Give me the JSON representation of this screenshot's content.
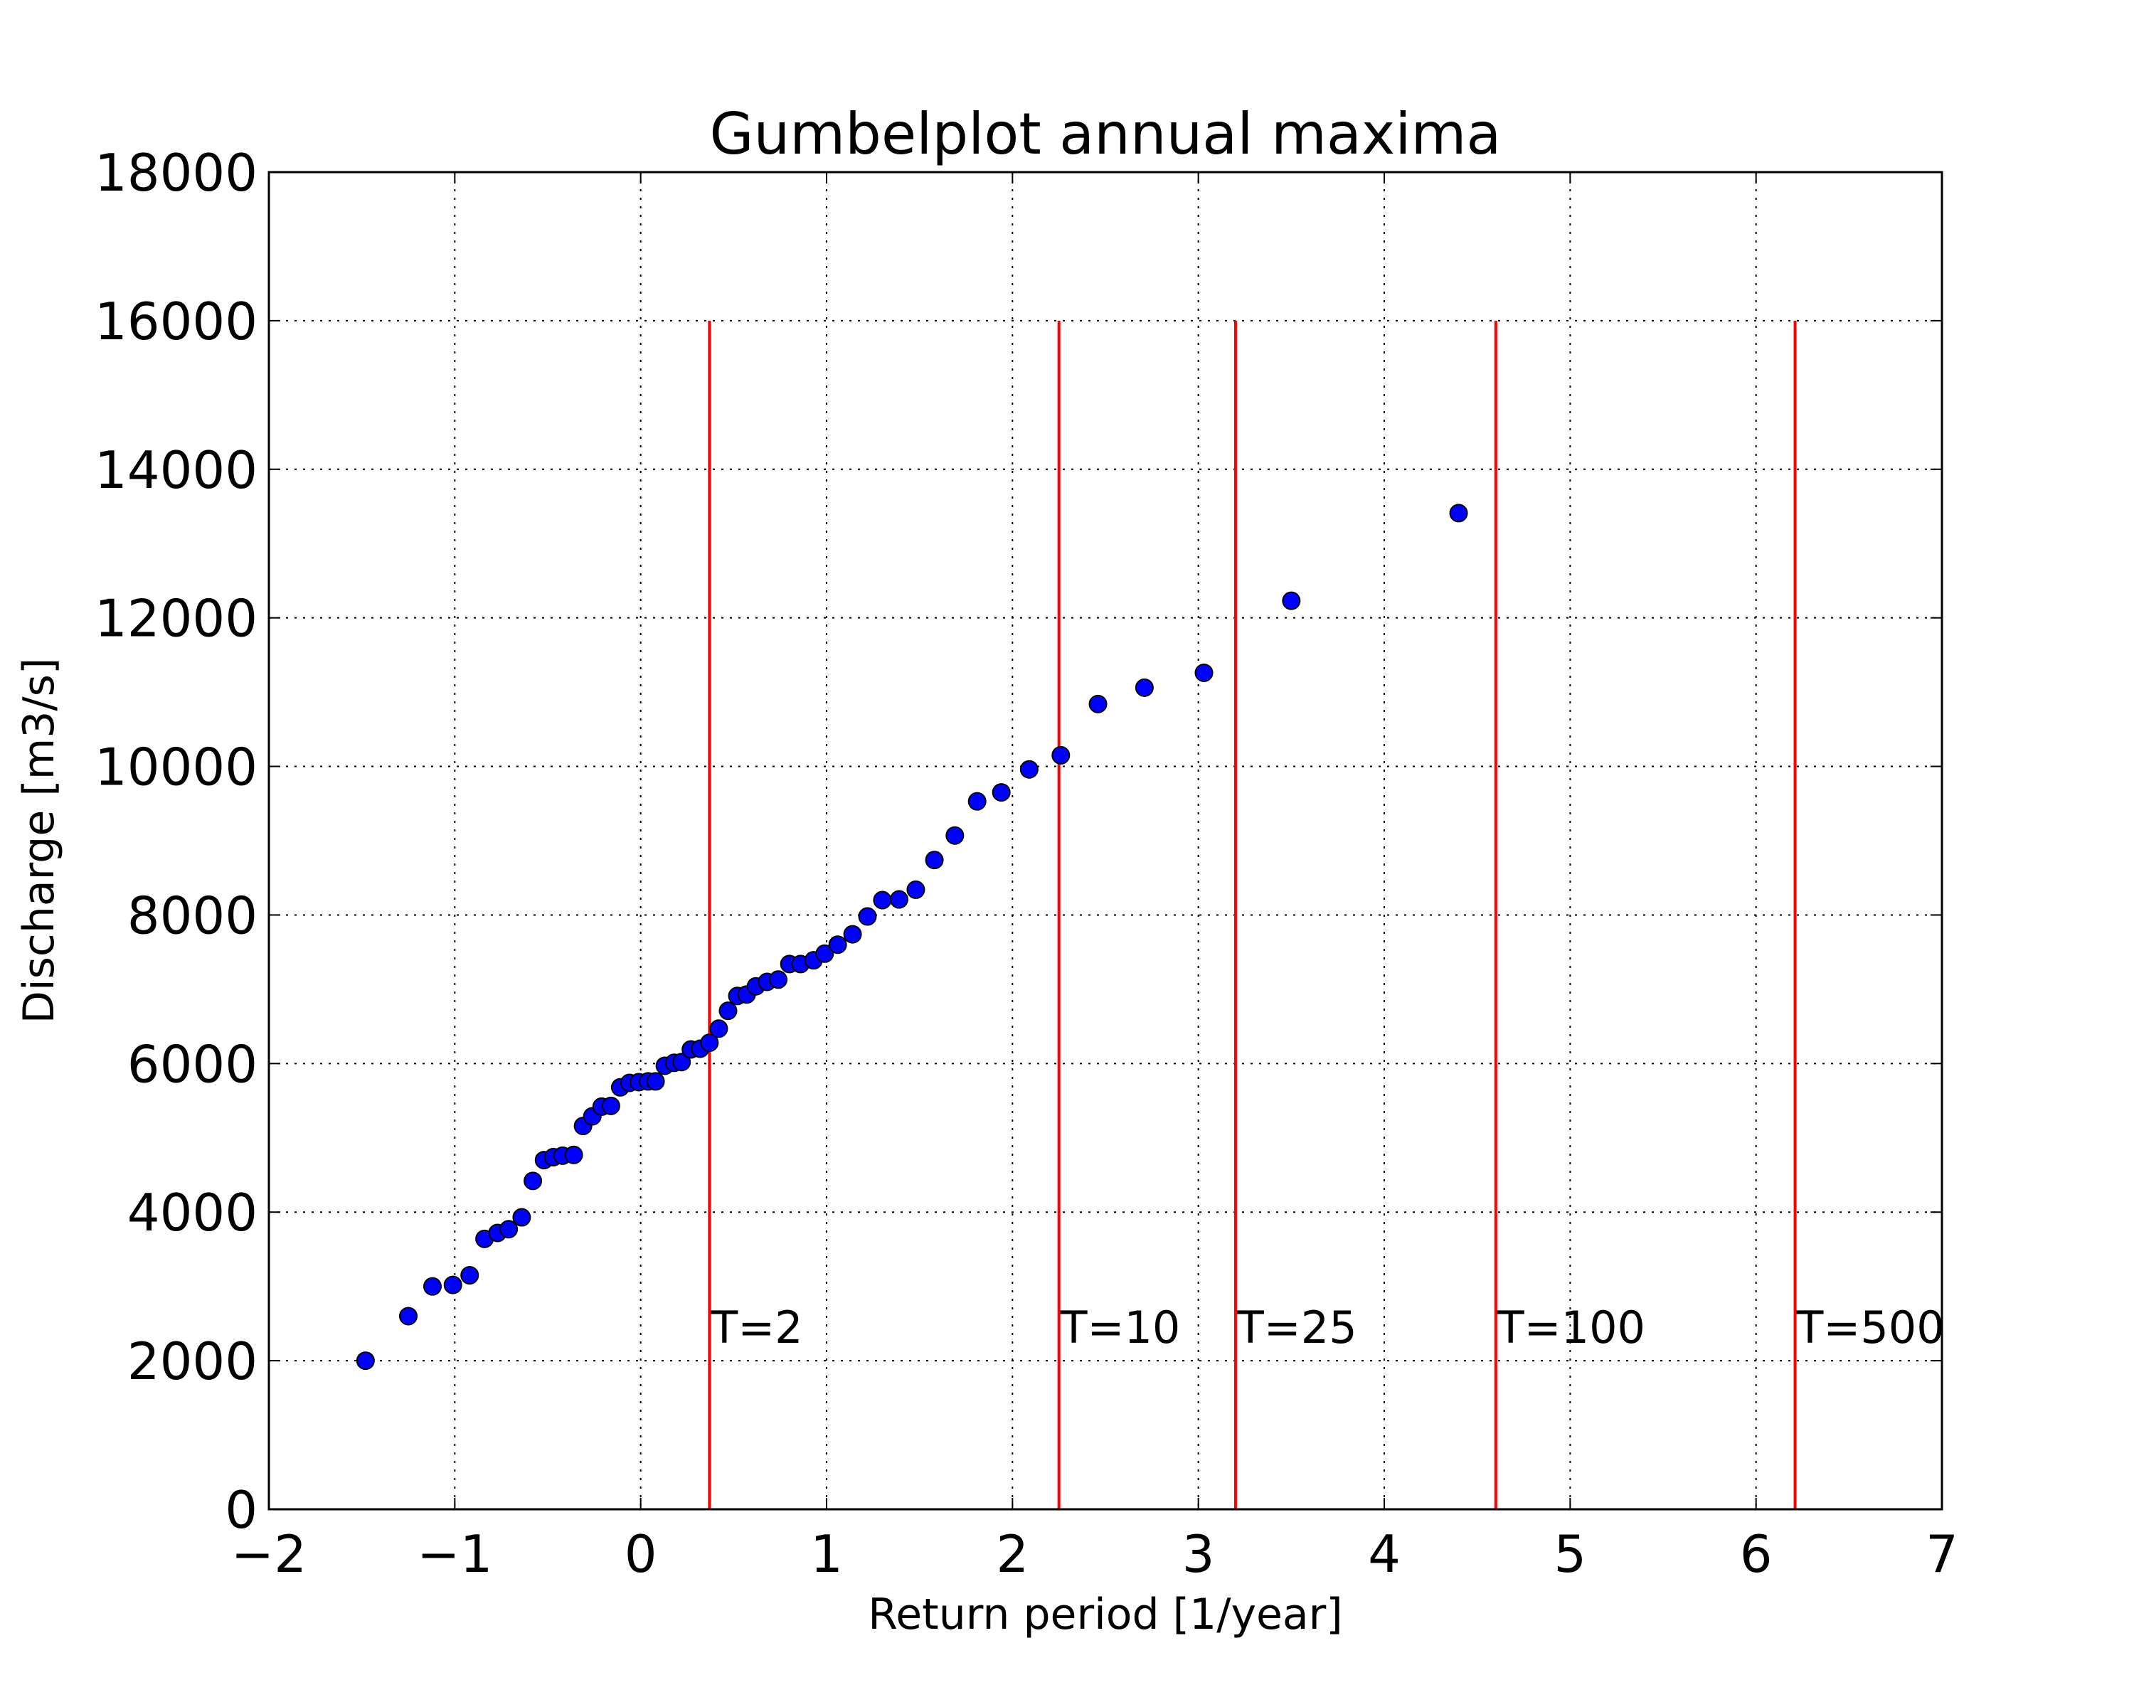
{
  "chart_data": {
    "type": "scatter",
    "title": "Gumbelplot annual maxima",
    "xlabel": "Return period [1/year]",
    "ylabel": "Discharge [m3/s]",
    "xlim": [
      -2,
      7
    ],
    "ylim": [
      0,
      18000
    ],
    "xticks": [
      -2,
      -1,
      0,
      1,
      2,
      3,
      4,
      5,
      6,
      7
    ],
    "yticks": [
      0,
      2000,
      4000,
      6000,
      8000,
      10000,
      12000,
      14000,
      16000,
      18000
    ],
    "grid": true,
    "marker_color": "#0000ff",
    "reference_line_color": "#ff0000",
    "reference_lines": [
      {
        "label": "T=2",
        "x": 0.37,
        "ymax": 16000,
        "label_y": 2200
      },
      {
        "label": "T=10",
        "x": 2.25,
        "ymax": 16000,
        "label_y": 2200
      },
      {
        "label": "T=25",
        "x": 3.2,
        "ymax": 16000,
        "label_y": 2200
      },
      {
        "label": "T=100",
        "x": 4.6,
        "ymax": 16000,
        "label_y": 2200
      },
      {
        "label": "T=500",
        "x": 6.21,
        "ymax": 16000,
        "label_y": 2200
      }
    ],
    "series": [
      {
        "points": [
          [
            -1.48,
            2000
          ],
          [
            -1.25,
            2600
          ],
          [
            -1.12,
            3000
          ],
          [
            -1.01,
            3020
          ],
          [
            -0.92,
            3150
          ],
          [
            -0.84,
            3640
          ],
          [
            -0.77,
            3720
          ],
          [
            -0.71,
            3770
          ],
          [
            -0.64,
            3930
          ],
          [
            -0.58,
            4420
          ],
          [
            -0.52,
            4700
          ],
          [
            -0.47,
            4740
          ],
          [
            -0.42,
            4760
          ],
          [
            -0.36,
            4770
          ],
          [
            -0.31,
            5160
          ],
          [
            -0.26,
            5290
          ],
          [
            -0.21,
            5420
          ],
          [
            -0.16,
            5430
          ],
          [
            -0.11,
            5680
          ],
          [
            -0.06,
            5740
          ],
          [
            -0.01,
            5750
          ],
          [
            0.04,
            5760
          ],
          [
            0.08,
            5760
          ],
          [
            0.13,
            5970
          ],
          [
            0.18,
            6010
          ],
          [
            0.22,
            6020
          ],
          [
            0.27,
            6190
          ],
          [
            0.32,
            6200
          ],
          [
            0.37,
            6280
          ],
          [
            0.42,
            6470
          ],
          [
            0.47,
            6710
          ],
          [
            0.52,
            6910
          ],
          [
            0.57,
            6930
          ],
          [
            0.62,
            7040
          ],
          [
            0.68,
            7100
          ],
          [
            0.74,
            7130
          ],
          [
            0.8,
            7340
          ],
          [
            0.86,
            7340
          ],
          [
            0.93,
            7390
          ],
          [
            0.99,
            7480
          ],
          [
            1.06,
            7600
          ],
          [
            1.14,
            7740
          ],
          [
            1.22,
            7980
          ],
          [
            1.3,
            8200
          ],
          [
            1.39,
            8210
          ],
          [
            1.48,
            8340
          ],
          [
            1.58,
            8740
          ],
          [
            1.69,
            9070
          ],
          [
            1.81,
            9530
          ],
          [
            1.94,
            9650
          ],
          [
            2.09,
            9960
          ],
          [
            2.26,
            10150
          ],
          [
            2.46,
            10840
          ],
          [
            2.71,
            11060
          ],
          [
            3.03,
            11260
          ],
          [
            3.5,
            12230
          ],
          [
            4.4,
            13410
          ]
        ]
      }
    ]
  }
}
